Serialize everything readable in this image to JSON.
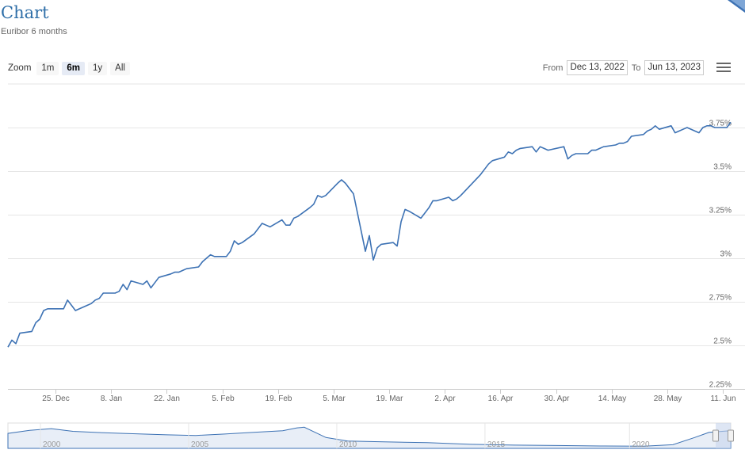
{
  "page": {
    "title": "Chart",
    "subtitle": "Euribor 6 months"
  },
  "toolbar": {
    "zoom_label": "Zoom",
    "zoom_buttons": [
      "1m",
      "6m",
      "1y",
      "All"
    ],
    "active_zoom": "6m",
    "from_label": "From",
    "from_value": "Dec 13, 2022",
    "to_label": "To",
    "to_value": "Jun 13, 2023",
    "menu_icon": "hamburger-menu-icon"
  },
  "colors": {
    "line": "#3d72b4",
    "grid": "#e6e6e6",
    "navigator_fill": "#e8eef7",
    "navigator_mask": "#c8d6ec",
    "title": "#2f6fa8"
  },
  "chart_data": {
    "type": "line",
    "title": "Chart",
    "subtitle": "Euribor 6 months",
    "y_axis": {
      "position": "right",
      "ticks": [
        2.25,
        2.5,
        2.75,
        3.0,
        3.25,
        3.5,
        3.75
      ],
      "tick_labels": [
        "2.25%",
        "2.5%",
        "2.75%",
        "3%",
        "3.25%",
        "3.5%",
        "3.75%"
      ],
      "ylim": [
        2.25,
        3.85
      ]
    },
    "x_axis": {
      "range": [
        "2022-12-13",
        "2023-06-13"
      ],
      "ticks": [
        "2022-12-25",
        "2023-01-08",
        "2023-01-22",
        "2023-02-05",
        "2023-02-19",
        "2023-03-05",
        "2023-03-19",
        "2023-04-02",
        "2023-04-16",
        "2023-04-30",
        "2023-05-14",
        "2023-05-28",
        "2023-06-11"
      ],
      "tick_labels": [
        "25. Dec",
        "8. Jan",
        "22. Jan",
        "5. Feb",
        "19. Feb",
        "5. Mar",
        "19. Mar",
        "2. Apr",
        "16. Apr",
        "30. Apr",
        "14. May",
        "28. May",
        "11. Jun"
      ]
    },
    "grid": true,
    "legend": "none",
    "series": [
      {
        "x": [
          "2022-12-13",
          "2022-12-14",
          "2022-12-15",
          "2022-12-16",
          "2022-12-19",
          "2022-12-20",
          "2022-12-21",
          "2022-12-22",
          "2022-12-23",
          "2022-12-27",
          "2022-12-28",
          "2022-12-29",
          "2022-12-30",
          "2023-01-02",
          "2023-01-03",
          "2023-01-04",
          "2023-01-05",
          "2023-01-06",
          "2023-01-09",
          "2023-01-10",
          "2023-01-11",
          "2023-01-12",
          "2023-01-13",
          "2023-01-16",
          "2023-01-17",
          "2023-01-18",
          "2023-01-19",
          "2023-01-20",
          "2023-01-23",
          "2023-01-24",
          "2023-01-25",
          "2023-01-26",
          "2023-01-27",
          "2023-01-30",
          "2023-01-31",
          "2023-02-01",
          "2023-02-02",
          "2023-02-03",
          "2023-02-06",
          "2023-02-07",
          "2023-02-08",
          "2023-02-09",
          "2023-02-10",
          "2023-02-13",
          "2023-02-14",
          "2023-02-15",
          "2023-02-16",
          "2023-02-17",
          "2023-02-20",
          "2023-02-21",
          "2023-02-22",
          "2023-02-23",
          "2023-02-24",
          "2023-02-27",
          "2023-02-28",
          "2023-03-01",
          "2023-03-02",
          "2023-03-03",
          "2023-03-06",
          "2023-03-07",
          "2023-03-08",
          "2023-03-09",
          "2023-03-10",
          "2023-03-13",
          "2023-03-14",
          "2023-03-15",
          "2023-03-16",
          "2023-03-17",
          "2023-03-20",
          "2023-03-21",
          "2023-03-22",
          "2023-03-23",
          "2023-03-24",
          "2023-03-27",
          "2023-03-28",
          "2023-03-29",
          "2023-03-30",
          "2023-03-31",
          "2023-04-03",
          "2023-04-04",
          "2023-04-05",
          "2023-04-06",
          "2023-04-11",
          "2023-04-12",
          "2023-04-13",
          "2023-04-14",
          "2023-04-17",
          "2023-04-18",
          "2023-04-19",
          "2023-04-20",
          "2023-04-21",
          "2023-04-24",
          "2023-04-25",
          "2023-04-26",
          "2023-04-27",
          "2023-04-28",
          "2023-05-02",
          "2023-05-03",
          "2023-05-04",
          "2023-05-05",
          "2023-05-08",
          "2023-05-09",
          "2023-05-10",
          "2023-05-11",
          "2023-05-12",
          "2023-05-15",
          "2023-05-16",
          "2023-05-17",
          "2023-05-18",
          "2023-05-19",
          "2023-05-22",
          "2023-05-23",
          "2023-05-24",
          "2023-05-25",
          "2023-05-26",
          "2023-05-29",
          "2023-05-30",
          "2023-05-31",
          "2023-06-01",
          "2023-06-02",
          "2023-06-05",
          "2023-06-06",
          "2023-06-07",
          "2023-06-08",
          "2023-06-09",
          "2023-06-12",
          "2023-06-13"
        ],
        "y": [
          2.49,
          2.53,
          2.51,
          2.57,
          2.58,
          2.63,
          2.65,
          2.7,
          2.71,
          2.71,
          2.76,
          2.73,
          2.7,
          2.73,
          2.74,
          2.76,
          2.77,
          2.8,
          2.8,
          2.81,
          2.85,
          2.82,
          2.87,
          2.85,
          2.87,
          2.83,
          2.86,
          2.89,
          2.91,
          2.92,
          2.92,
          2.93,
          2.94,
          2.95,
          2.98,
          3.0,
          3.02,
          3.01,
          3.01,
          3.04,
          3.1,
          3.08,
          3.09,
          3.14,
          3.17,
          3.2,
          3.19,
          3.18,
          3.22,
          3.19,
          3.19,
          3.23,
          3.24,
          3.29,
          3.31,
          3.36,
          3.35,
          3.36,
          3.43,
          3.45,
          3.43,
          3.4,
          3.37,
          3.04,
          3.13,
          2.99,
          3.06,
          3.08,
          3.09,
          3.07,
          3.21,
          3.28,
          3.27,
          3.23,
          3.26,
          3.29,
          3.33,
          3.33,
          3.35,
          3.33,
          3.34,
          3.36,
          3.48,
          3.51,
          3.54,
          3.56,
          3.58,
          3.61,
          3.6,
          3.62,
          3.63,
          3.64,
          3.61,
          3.64,
          3.63,
          3.62,
          3.64,
          3.57,
          3.59,
          3.6,
          3.6,
          3.62,
          3.62,
          3.63,
          3.64,
          3.65,
          3.66,
          3.66,
          3.67,
          3.7,
          3.71,
          3.73,
          3.74,
          3.76,
          3.74,
          3.76,
          3.72,
          3.73,
          3.74,
          3.75,
          3.72,
          3.75,
          3.76,
          3.76,
          3.75,
          3.75,
          3.78
        ]
      }
    ],
    "navigator": {
      "x_labels": [
        "2000",
        "2005",
        "2010",
        "2015",
        "2020"
      ],
      "selected_range": [
        "2022-12-13",
        "2023-06-13"
      ]
    }
  }
}
